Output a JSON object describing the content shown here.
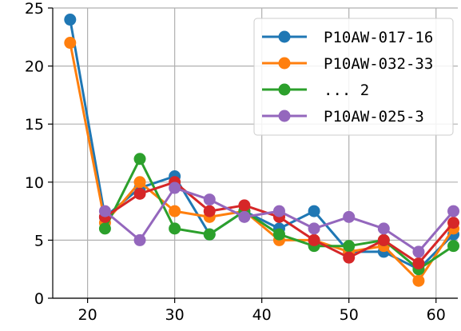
{
  "chart_data": {
    "type": "line",
    "title": "",
    "xlabel": "",
    "ylabel": "",
    "xlim": [
      16,
      62.5
    ],
    "ylim": [
      0,
      25
    ],
    "x_ticks": [
      20,
      30,
      40,
      50,
      60
    ],
    "y_ticks": [
      0,
      5,
      10,
      15,
      20,
      25
    ],
    "grid": true,
    "legend_placement": "top-right",
    "series": [
      {
        "name": "P10AW-017-16",
        "color": "#1f77b4",
        "x": [
          18,
          22,
          26,
          30,
          34,
          38,
          42,
          46,
          50,
          54,
          58,
          62
        ],
        "y": [
          24,
          7,
          9.5,
          10.5,
          5.5,
          7.5,
          6,
          7.5,
          4,
          4,
          2.5,
          5.5
        ]
      },
      {
        "name": "P10AW-032-33",
        "color": "#ff7f0e",
        "x": [
          18,
          22,
          26,
          30,
          34,
          38,
          42,
          46,
          50,
          54,
          58,
          62
        ],
        "y": [
          22,
          6.5,
          10,
          7.5,
          7,
          7.5,
          5,
          5,
          4,
          4.5,
          1.5,
          6
        ]
      },
      {
        "name": "... 2",
        "color": "#2ca02c",
        "x": [
          22,
          26,
          30,
          34,
          38,
          42,
          46,
          50,
          54,
          58,
          62
        ],
        "y": [
          6,
          12,
          6,
          5.5,
          7.5,
          5.5,
          4.5,
          4.5,
          5,
          2.5,
          4.5
        ]
      },
      {
        "name": "",
        "color": "#d62728",
        "x": [
          22,
          26,
          30,
          34,
          38,
          42,
          46,
          50,
          54,
          58,
          62
        ],
        "y": [
          7,
          9,
          10,
          7.5,
          8,
          7,
          5,
          3.5,
          5,
          3,
          6.5
        ]
      },
      {
        "name": "P10AW-025-3",
        "color": "#9467bd",
        "x": [
          22,
          26,
          30,
          34,
          38,
          42,
          46,
          50,
          54,
          58,
          62
        ],
        "y": [
          7.5,
          5,
          9.5,
          8.5,
          7,
          7.5,
          6,
          7,
          6,
          4,
          7.5
        ]
      }
    ],
    "legend_entries": [
      {
        "label": "P10AW-017-16",
        "color": "#1f77b4"
      },
      {
        "label": "P10AW-032-33",
        "color": "#ff7f0e"
      },
      {
        "label": "...   2",
        "color": "#2ca02c"
      },
      {
        "label": "P10AW-025-3",
        "color": "#9467bd"
      }
    ]
  }
}
